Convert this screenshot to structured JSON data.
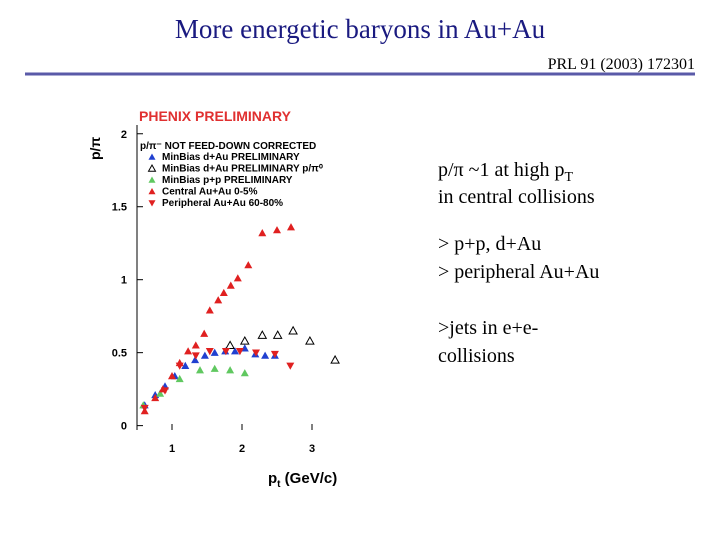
{
  "slide": {
    "title": "More energetic baryons in Au+Au",
    "reference": "PRL 91 (2003) 172301",
    "notes": [
      {
        "lines": [
          [
            "p/π ~1 at high p",
            "T"
          ],
          [
            "in central collisions"
          ]
        ]
      },
      {
        "lines": [
          [
            "> p+p, d+Au"
          ],
          [
            "> peripheral Au+Au"
          ]
        ]
      },
      {
        "lines": [
          [
            ">jets in e+e-"
          ],
          [
            "collisions"
          ]
        ]
      }
    ]
  },
  "chart_data": {
    "type": "scatter",
    "title": "PHENIX PRELIMINARY",
    "y_label": "p/π",
    "x_label": [
      "p",
      "t",
      " (GeV/c)"
    ],
    "legend_title": "p/π⁻ NOT FEED-DOWN CORRECTED",
    "xlim": [
      0.5,
      3.9
    ],
    "ylim": [
      -0.03,
      2.06
    ],
    "xticks": [
      1,
      2,
      3
    ],
    "yticks": [
      0,
      0.5,
      1,
      1.5,
      2
    ],
    "series": [
      {
        "name": "MinBias d+Au PRELIMINARY",
        "color": "#2040d0",
        "marker": "triangle-up",
        "x": [
          0.61,
          0.76,
          0.9,
          1.04,
          1.19,
          1.33,
          1.47,
          1.61,
          1.76,
          1.9,
          2.04,
          2.19,
          2.33,
          2.47
        ],
        "values": [
          0.14,
          0.21,
          0.27,
          0.34,
          0.41,
          0.45,
          0.48,
          0.5,
          0.51,
          0.51,
          0.53,
          0.49,
          0.48,
          0.48
        ]
      },
      {
        "name": "MinBias d+Au PRELIMINARY p/π⁰",
        "color": "#000000",
        "marker": "triangle-up-open",
        "x": [
          1.83,
          2.04,
          2.29,
          2.51,
          2.73,
          2.97,
          3.33
        ],
        "values": [
          0.55,
          0.58,
          0.62,
          0.62,
          0.65,
          0.58,
          0.45
        ]
      },
      {
        "name": "MinBias p+p PRELIMINARY",
        "color": "#60c860",
        "marker": "triangle-up",
        "x": [
          0.59,
          0.83,
          1.11,
          1.4,
          1.61,
          1.83,
          2.04
        ],
        "values": [
          0.14,
          0.22,
          0.32,
          0.38,
          0.39,
          0.38,
          0.36
        ]
      },
      {
        "name": "Central    Au+Au  0-5%",
        "color": "#e02020",
        "marker": "triangle-up",
        "x": [
          0.61,
          0.76,
          0.87,
          1.0,
          1.11,
          1.23,
          1.34,
          1.46,
          1.54,
          1.66,
          1.74,
          1.84,
          1.94,
          2.09,
          2.29,
          2.5,
          2.7
        ],
        "values": [
          0.1,
          0.19,
          0.25,
          0.34,
          0.43,
          0.51,
          0.55,
          0.63,
          0.79,
          0.86,
          0.91,
          0.96,
          1.01,
          1.1,
          1.32,
          1.34,
          1.36
        ]
      },
      {
        "name": "Peripheral Au+Au 60-80%",
        "color": "#e02020",
        "marker": "triangle-down",
        "x": [
          0.61,
          0.9,
          1.11,
          1.34,
          1.54,
          1.77,
          1.97,
          2.2,
          2.47,
          2.69
        ],
        "values": [
          0.12,
          0.24,
          0.41,
          0.48,
          0.51,
          0.51,
          0.51,
          0.5,
          0.49,
          0.41
        ]
      }
    ]
  }
}
